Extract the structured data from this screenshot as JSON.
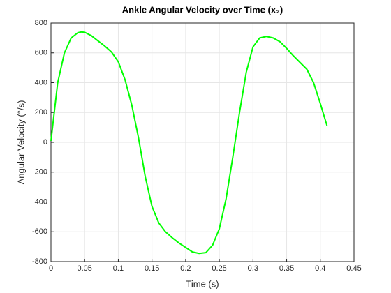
{
  "chart_data": {
    "type": "line",
    "title": "Ankle Angular Velocity over Time (x₂)",
    "x_label": "Time (s)",
    "y_label": "Angular Velocity (°/s)",
    "x": [
      0,
      0.01,
      0.02,
      0.03,
      0.04,
      0.045,
      0.05,
      0.06,
      0.07,
      0.08,
      0.09,
      0.1,
      0.11,
      0.12,
      0.13,
      0.14,
      0.15,
      0.16,
      0.17,
      0.18,
      0.19,
      0.2,
      0.21,
      0.22,
      0.23,
      0.24,
      0.25,
      0.26,
      0.27,
      0.28,
      0.29,
      0.3,
      0.31,
      0.32,
      0.33,
      0.34,
      0.35,
      0.36,
      0.37,
      0.38,
      0.39,
      0.4,
      0.41
    ],
    "series": [
      {
        "name": "x2",
        "color": "#00ff00",
        "values": [
          10,
          400,
          600,
          700,
          735,
          740,
          738,
          715,
          680,
          645,
          605,
          540,
          420,
          250,
          30,
          -230,
          -430,
          -540,
          -600,
          -640,
          -675,
          -705,
          -735,
          -745,
          -740,
          -690,
          -580,
          -380,
          -100,
          200,
          470,
          640,
          700,
          710,
          700,
          675,
          630,
          580,
          535,
          490,
          400,
          260,
          110
        ]
      }
    ],
    "xlim": [
      0,
      0.45
    ],
    "ylim": [
      -800,
      800
    ],
    "xticks": [
      0,
      0.05,
      0.1,
      0.15,
      0.2,
      0.25,
      0.3,
      0.35,
      0.4,
      0.45
    ],
    "yticks": [
      -800,
      -600,
      -400,
      -200,
      0,
      200,
      400,
      600,
      800
    ],
    "grid": true
  }
}
